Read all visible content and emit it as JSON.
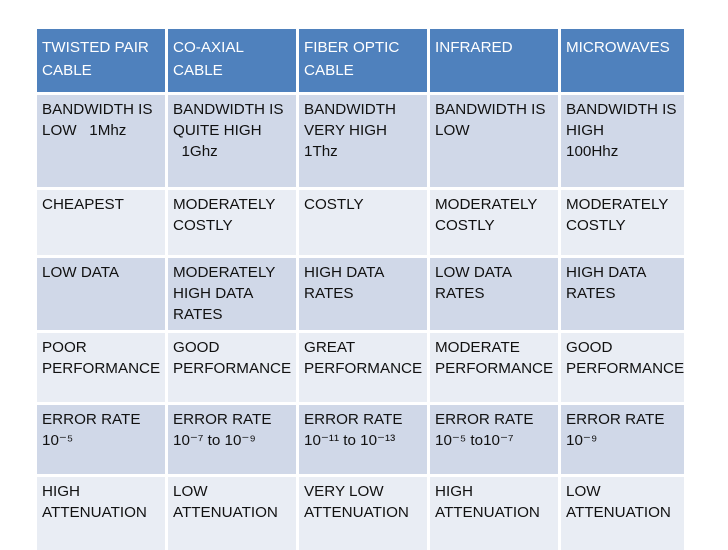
{
  "table": {
    "headers": [
      "TWISTED PAIR\nCABLE",
      "CO-AXIAL\nCABLE",
      "FIBER OPTIC\nCABLE",
      "INFRARED",
      "MICROWAVES"
    ],
    "rows": [
      [
        "BANDWIDTH IS\nLOW   1Mhz",
        "BANDWIDTH IS\nQUITE HIGH\n  1Ghz",
        "BANDWIDTH\nVERY HIGH\n1Thz",
        "BANDWIDTH IS\nLOW",
        "BANDWIDTH IS\nHIGH\n100Hhz"
      ],
      [
        "CHEAPEST",
        "MODERATELY\nCOSTLY",
        "COSTLY",
        "MODERATELY\nCOSTLY",
        "MODERATELY\nCOSTLY"
      ],
      [
        "LOW DATA",
        "MODERATELY\nHIGH DATA\nRATES",
        "HIGH DATA\nRATES",
        "LOW DATA\nRATES",
        "HIGH DATA\nRATES"
      ],
      [
        "POOR\nPERFORMANCE",
        "GOOD\nPERFORMANCE",
        "GREAT\nPERFORMANCE",
        "MODERATE\nPERFORMANCE",
        "GOOD\nPERFORMANCE"
      ],
      [
        "ERROR RATE\n10⁻⁵",
        "ERROR RATE\n10⁻⁷ to 10⁻⁹",
        "ERROR RATE\n10⁻¹¹ to 10⁻¹³",
        "ERROR RATE\n10⁻⁵ to10⁻⁷",
        "ERROR RATE\n10⁻⁹"
      ],
      [
        "HIGH\nATTENUATION",
        "LOW\nATTENUATION",
        "VERY LOW\nATTENUATION",
        "HIGH\nATTENUATION",
        "LOW\nATTENUATION"
      ]
    ]
  },
  "colors": {
    "header_bg": "#4f81bd",
    "row_dark": "#d0d8e8",
    "row_light": "#e9edf4"
  }
}
